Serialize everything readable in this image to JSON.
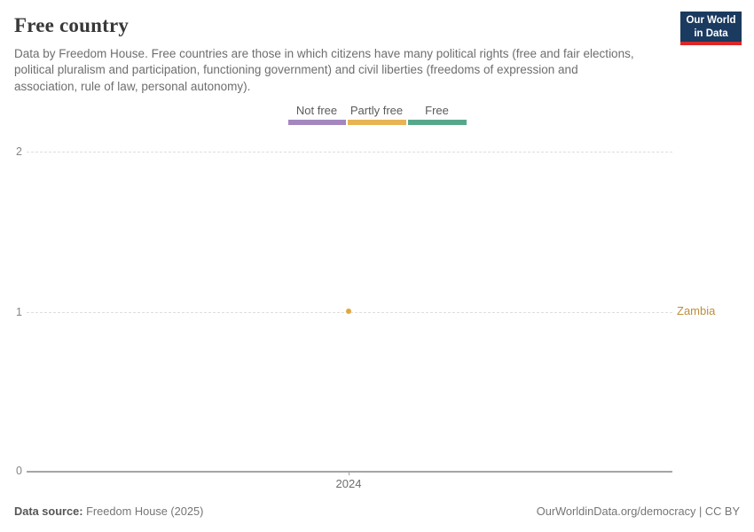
{
  "header": {
    "title": "Free country",
    "subtitle": "Data by Freedom House. Free countries are those in which citizens have many political rights (free and fair elections, political pluralism and participation, functioning government) and civil liberties (freedoms of expression and association, rule of law, personal autonomy).",
    "logo": {
      "line1": "Our World",
      "line2": "in Data",
      "bg_color": "#1b3a5f",
      "bar_color": "#dc2727"
    }
  },
  "legend": {
    "items": [
      {
        "label": "Not free",
        "color": "#a487be"
      },
      {
        "label": "Partly free",
        "color": "#e7b454"
      },
      {
        "label": "Free",
        "color": "#57a88a"
      }
    ]
  },
  "chart_data": {
    "type": "scatter",
    "title": "Free country",
    "series": [
      {
        "name": "Zambia",
        "x": [
          2024
        ],
        "y": [
          1
        ],
        "point_category": "Partly free",
        "color": "#e0a83e",
        "label_color": "#bd8e3c"
      }
    ],
    "x_ticks": [
      "2024"
    ],
    "y_ticks": [
      "0",
      "1",
      "2"
    ],
    "ylim": [
      0,
      2
    ],
    "grid": "horizontal-dashed",
    "legend_position": "top-center",
    "legend_entries": [
      "Not free",
      "Partly free",
      "Free"
    ]
  },
  "footer": {
    "source_label": "Data source:",
    "source_value": "Freedom House (2025)",
    "credit": "OurWorldinData.org/democracy | CC BY"
  }
}
